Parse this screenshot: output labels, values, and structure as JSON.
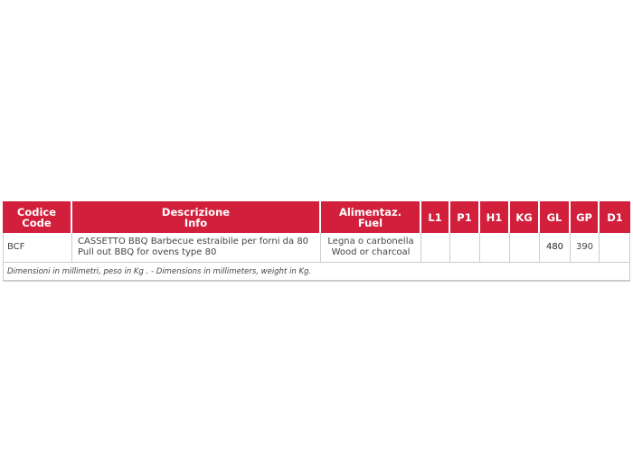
{
  "table": {
    "headers": [
      {
        "line1": "Codice",
        "line2": "Code"
      },
      {
        "line1": "Descrizione",
        "line2": "Info"
      },
      {
        "line1": "Alimentaz.",
        "line2": "Fuel"
      },
      {
        "line1": "L1",
        "line2": ""
      },
      {
        "line1": "P1",
        "line2": ""
      },
      {
        "line1": "H1",
        "line2": ""
      },
      {
        "line1": "KG",
        "line2": ""
      },
      {
        "line1": "GL",
        "line2": ""
      },
      {
        "line1": "GP",
        "line2": ""
      },
      {
        "line1": "D1",
        "line2": ""
      }
    ],
    "row": {
      "code": "BCF",
      "desc_it": "CASSETTO BBQ Barbecue estraibile per forni da 80",
      "desc_en": "Pull out BBQ for ovens type 80",
      "fuel_it": "Legna o carbonella",
      "fuel_en": "Wood or charcoal",
      "L1": "",
      "P1": "",
      "H1": "",
      "KG": "",
      "GL": "480",
      "GP": "390",
      "D1": ""
    },
    "footnote": "Dimensioni in millimetri, peso in Kg . - Dimensions in millimeters, weight in Kg."
  },
  "colors": {
    "header_bg": "#d21f3c"
  }
}
